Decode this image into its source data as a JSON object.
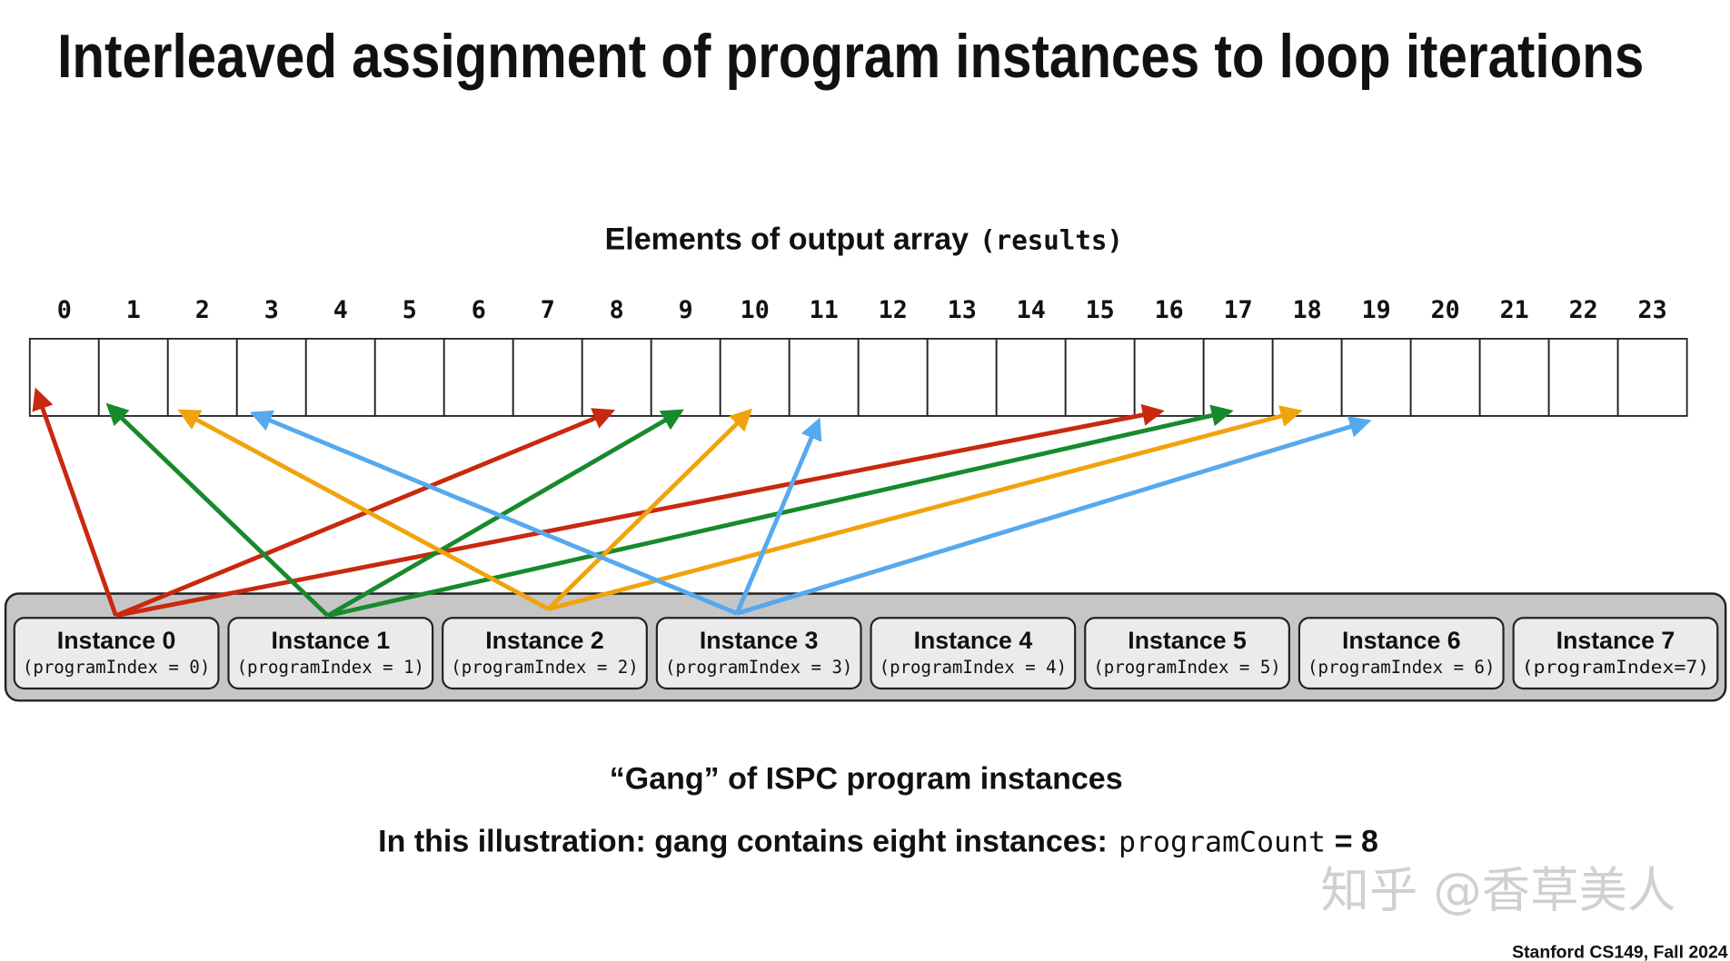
{
  "title": "Interleaved assignment of program instances to loop iterations",
  "array_label": "Elements of output array",
  "array_name": "(results)",
  "indices": [
    "0",
    "1",
    "2",
    "3",
    "4",
    "5",
    "6",
    "7",
    "8",
    "9",
    "10",
    "11",
    "12",
    "13",
    "14",
    "15",
    "16",
    "17",
    "18",
    "19",
    "20",
    "21",
    "22",
    "23"
  ],
  "instances": [
    {
      "name": "Instance 0",
      "index_label": "(programIndex = 0)",
      "color": "#c8290f",
      "elements": [
        0,
        8,
        16
      ]
    },
    {
      "name": "Instance 1",
      "index_label": "(programIndex = 1)",
      "color": "#178a2c",
      "elements": [
        1,
        9,
        17
      ]
    },
    {
      "name": "Instance 2",
      "index_label": "(programIndex = 2)",
      "color": "#f0a30c",
      "elements": [
        2,
        10,
        18
      ]
    },
    {
      "name": "Instance 3",
      "index_label": "(programIndex = 3)",
      "color": "#56a9ee",
      "elements": [
        3,
        11,
        19
      ]
    },
    {
      "name": "Instance 4",
      "index_label": "(programIndex = 4)"
    },
    {
      "name": "Instance 5",
      "index_label": "(programIndex = 5)"
    },
    {
      "name": "Instance 6",
      "index_label": "(programIndex = 6)"
    },
    {
      "name": "Instance 7",
      "index_label": "(programIndex=7)"
    }
  ],
  "gang_caption": "“Gang” of ISPC program instances",
  "illustration_prefix": "In this illustration: gang contains eight instances:",
  "illustration_code": "programCount",
  "illustration_suffix": "= 8",
  "watermark": "知乎 @香草美人",
  "footer": "Stanford CS149, Fall 2024"
}
